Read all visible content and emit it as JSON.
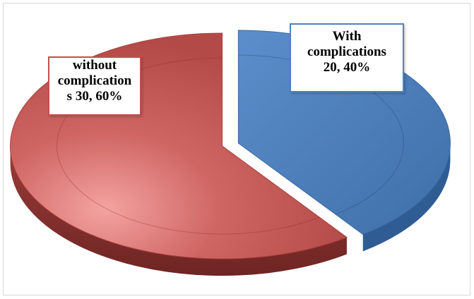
{
  "chart_data": {
    "type": "pie",
    "style": "3d-exploded",
    "slices": [
      {
        "name": "With complications",
        "value": 20,
        "percent": 40,
        "label_lines": [
          "With",
          "complications",
          "20, 40%"
        ],
        "color": "#4f81bd",
        "border_color": "#4f81bd"
      },
      {
        "name": "without complications",
        "value": 30,
        "percent": 60,
        "label_lines": [
          "without",
          "complication",
          "s 30, 60%"
        ],
        "color": "#c0504d",
        "border_color": "#c0504d"
      }
    ],
    "legend": "none"
  }
}
